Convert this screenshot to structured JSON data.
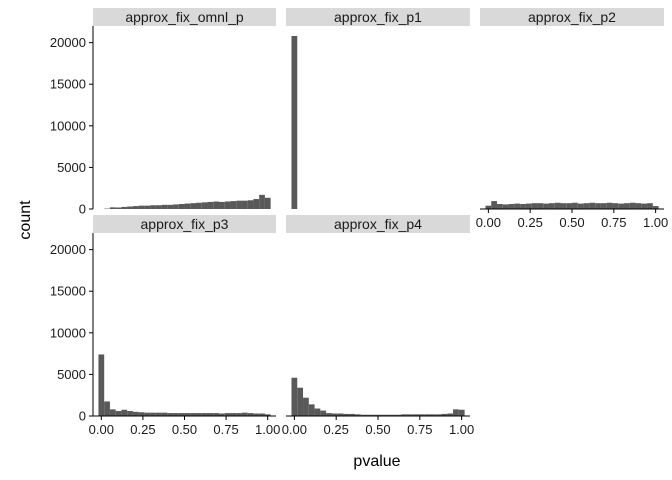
{
  "chart_data": {
    "type": "bar",
    "subtype": "faceted-histogram",
    "xlabel": "pvalue",
    "ylabel": "count",
    "ylim": [
      0,
      22000
    ],
    "xlim": [
      -0.05,
      1.05
    ],
    "y_ticks": [
      0,
      5000,
      10000,
      15000,
      20000
    ],
    "y_tick_labels": [
      "0",
      "5000",
      "10000",
      "15000",
      "20000"
    ],
    "x_ticks": [
      0,
      0.25,
      0.5,
      0.75,
      1
    ],
    "x_tick_labels": [
      "0.00",
      "0.25",
      "0.50",
      "0.75",
      "1.00"
    ],
    "bins": 30,
    "bin_start": -0.0172,
    "bin_width": 0.0345,
    "grid": false,
    "bar_color": "#595959",
    "strip_color": "#d9d9d9",
    "panels": [
      {
        "name": "approx_fix_omnl_p",
        "values": [
          0,
          50,
          200,
          180,
          250,
          300,
          350,
          400,
          400,
          450,
          450,
          500,
          500,
          550,
          600,
          650,
          700,
          750,
          800,
          850,
          900,
          850,
          900,
          950,
          1000,
          1000,
          1050,
          1200,
          1700,
          1350
        ]
      },
      {
        "name": "approx_fix_p1",
        "values": [
          20800,
          0,
          0,
          0,
          0,
          0,
          0,
          0,
          0,
          0,
          0,
          0,
          0,
          0,
          0,
          0,
          0,
          0,
          0,
          0,
          0,
          0,
          0,
          0,
          0,
          0,
          0,
          0,
          0,
          0
        ]
      },
      {
        "name": "approx_fix_p2",
        "values": [
          400,
          950,
          600,
          550,
          600,
          650,
          600,
          650,
          700,
          700,
          650,
          700,
          750,
          700,
          700,
          750,
          650,
          700,
          750,
          700,
          700,
          750,
          700,
          650,
          700,
          750,
          700,
          650,
          700,
          350
        ]
      },
      {
        "name": "approx_fix_p3",
        "values": [
          7400,
          1750,
          800,
          600,
          750,
          600,
          500,
          450,
          400,
          400,
          400,
          400,
          350,
          350,
          350,
          350,
          350,
          350,
          350,
          350,
          350,
          300,
          350,
          350,
          350,
          400,
          350,
          300,
          300,
          200
        ]
      },
      {
        "name": "approx_fix_p4",
        "values": [
          4600,
          3400,
          2200,
          1400,
          900,
          650,
          350,
          300,
          300,
          250,
          250,
          200,
          150,
          150,
          150,
          150,
          150,
          150,
          150,
          200,
          200,
          200,
          200,
          200,
          200,
          200,
          250,
          300,
          800,
          750
        ]
      }
    ]
  }
}
